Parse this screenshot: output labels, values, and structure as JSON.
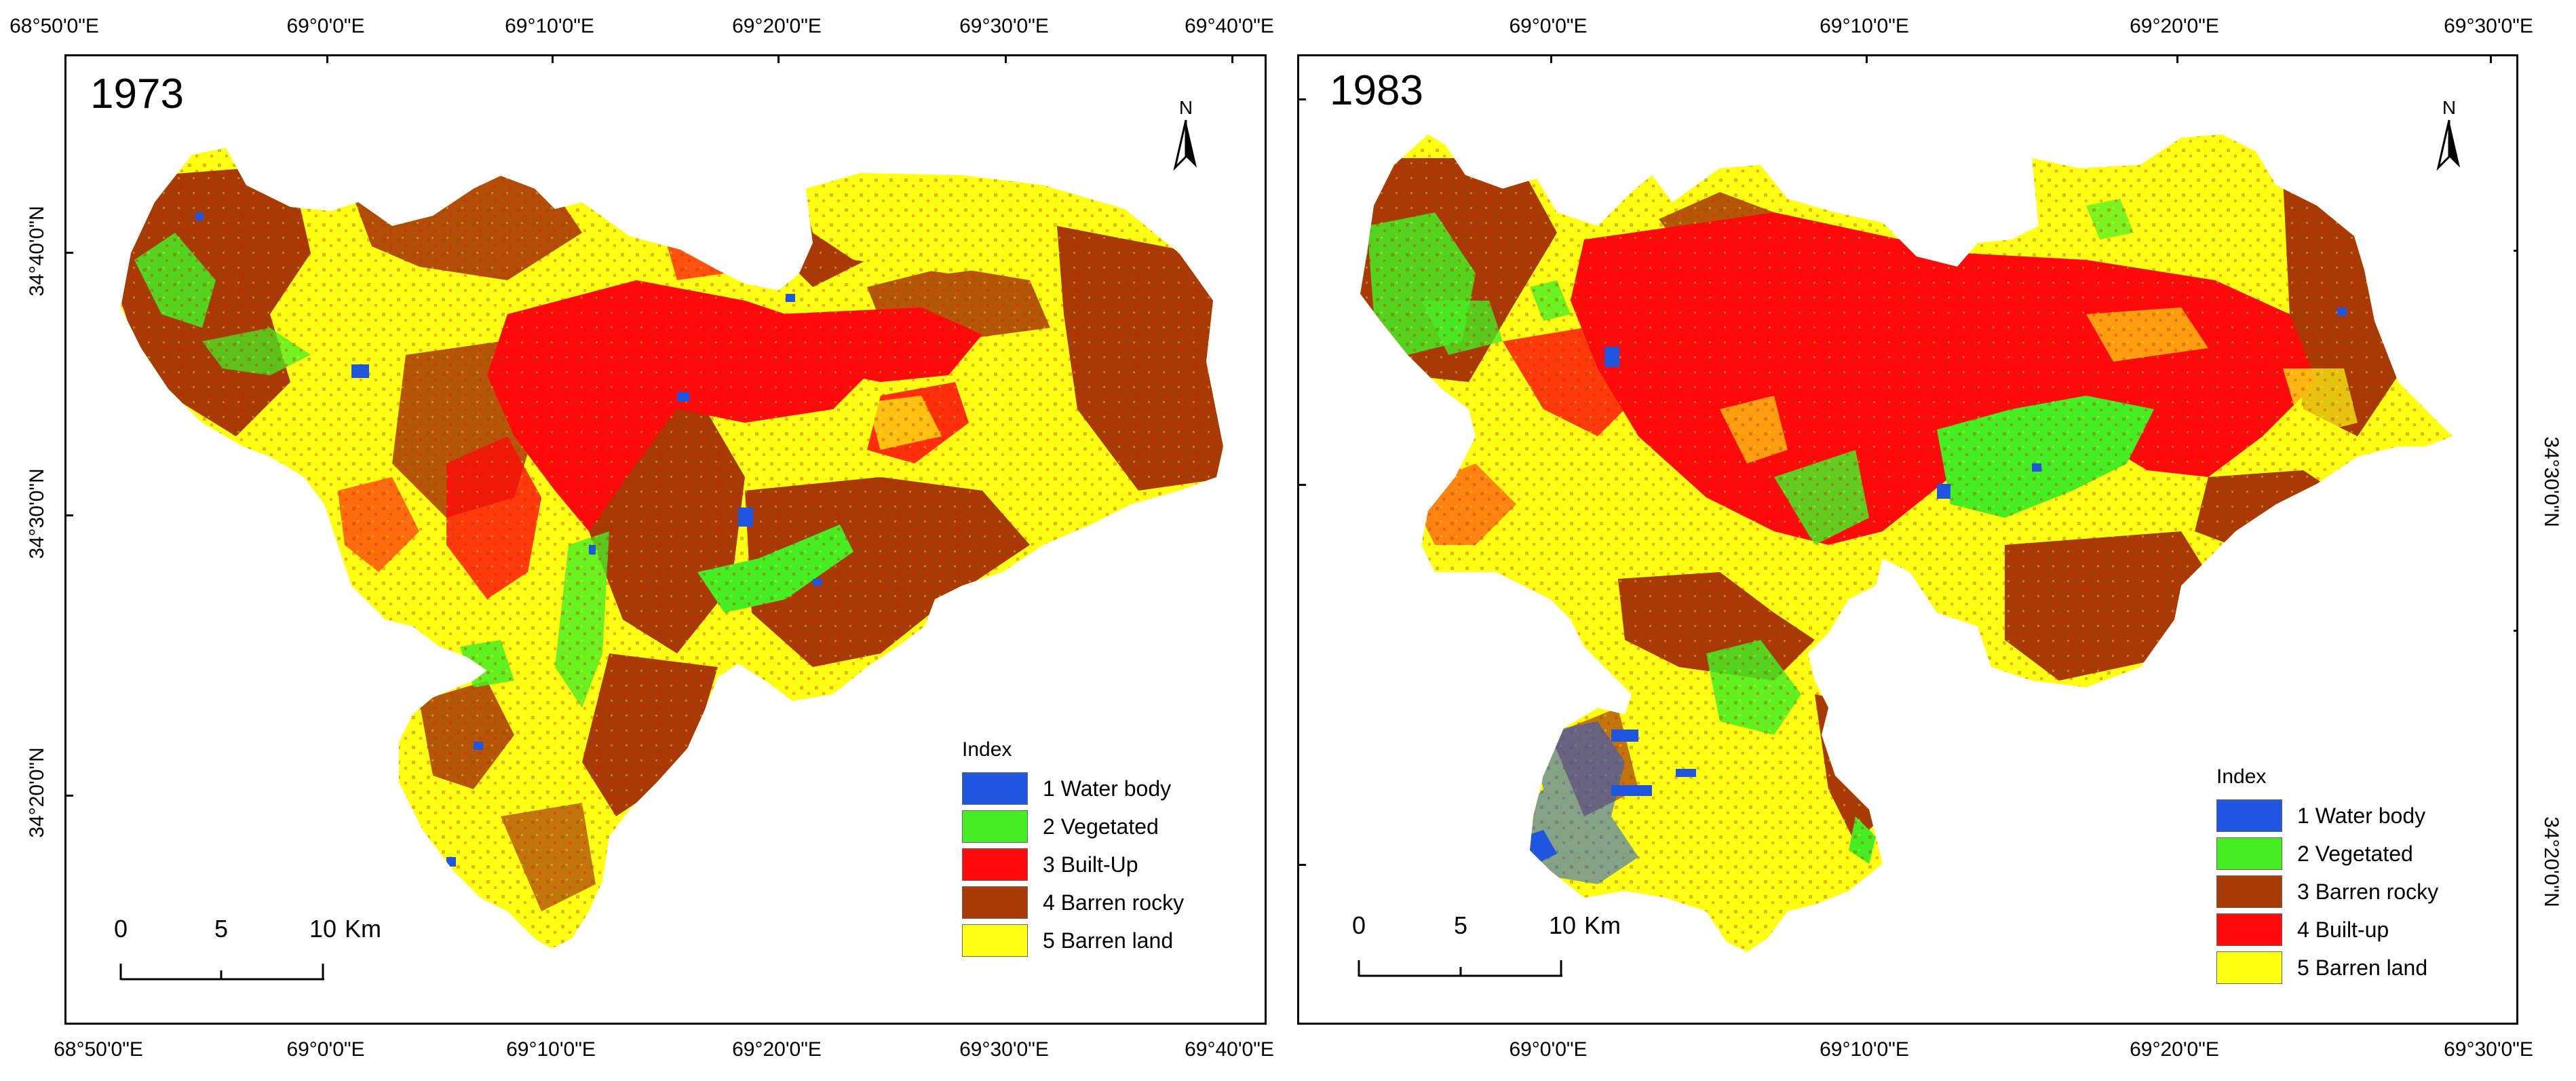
{
  "colors": {
    "water": "#1f56e0",
    "vegetated": "#45ee23",
    "builtup": "#ff0a0a",
    "barren_rocky": "#a83a06",
    "barren_land": "#ffff14"
  },
  "left_map": {
    "year": "1973",
    "north": "N",
    "top_ticks": [
      "68°50'0\"E",
      "69°0'0\"E",
      "69°10'0\"E",
      "69°20'0\"E",
      "69°30'0\"E",
      "69°40'0\"E"
    ],
    "bottom_ticks": [
      "68°50'0\"E",
      "69°0'0\"E",
      "69°10'0\"E",
      "69°20'0\"E",
      "69°30'0\"E",
      "69°40'0\"E"
    ],
    "left_ticks": [
      "34°40'0\"N",
      "34°30'0\"N",
      "34°20'0\"N"
    ],
    "legend": {
      "title": "Index",
      "items": [
        {
          "label": "1 Water body",
          "color": "#1f56e0"
        },
        {
          "label": "2 Vegetated",
          "color": "#45ee23"
        },
        {
          "label": "3 Built-Up",
          "color": "#ff0a0a"
        },
        {
          "label": "4 Barren rocky",
          "color": "#a83a06"
        },
        {
          "label": "5 Barren land",
          "color": "#ffff14"
        }
      ]
    },
    "scale": {
      "labels": [
        "0",
        "5",
        "10"
      ],
      "unit": "Km"
    }
  },
  "right_map": {
    "year": "1983",
    "north": "N",
    "top_ticks": [
      "69°0'0\"E",
      "69°10'0\"E",
      "69°20'0\"E",
      "69°30'0\"E"
    ],
    "bottom_ticks": [
      "69°0'0\"E",
      "69°10'0\"E",
      "69°20'0\"E",
      "69°30'0\"E"
    ],
    "right_ticks": [
      "34°30'0\"N",
      "34°20'0\"N"
    ],
    "legend": {
      "title": "Index",
      "items": [
        {
          "label": "1 Water body",
          "color": "#1f56e0"
        },
        {
          "label": "2 Vegetated",
          "color": "#45ee23"
        },
        {
          "label": "3 Barren rocky",
          "color": "#a83a06"
        },
        {
          "label": "4 Built-up",
          "color": "#ff0a0a"
        },
        {
          "label": "5 Barren land",
          "color": "#ffff14"
        }
      ]
    },
    "scale": {
      "labels": [
        "0",
        "5",
        "10"
      ],
      "unit": "Km"
    }
  }
}
